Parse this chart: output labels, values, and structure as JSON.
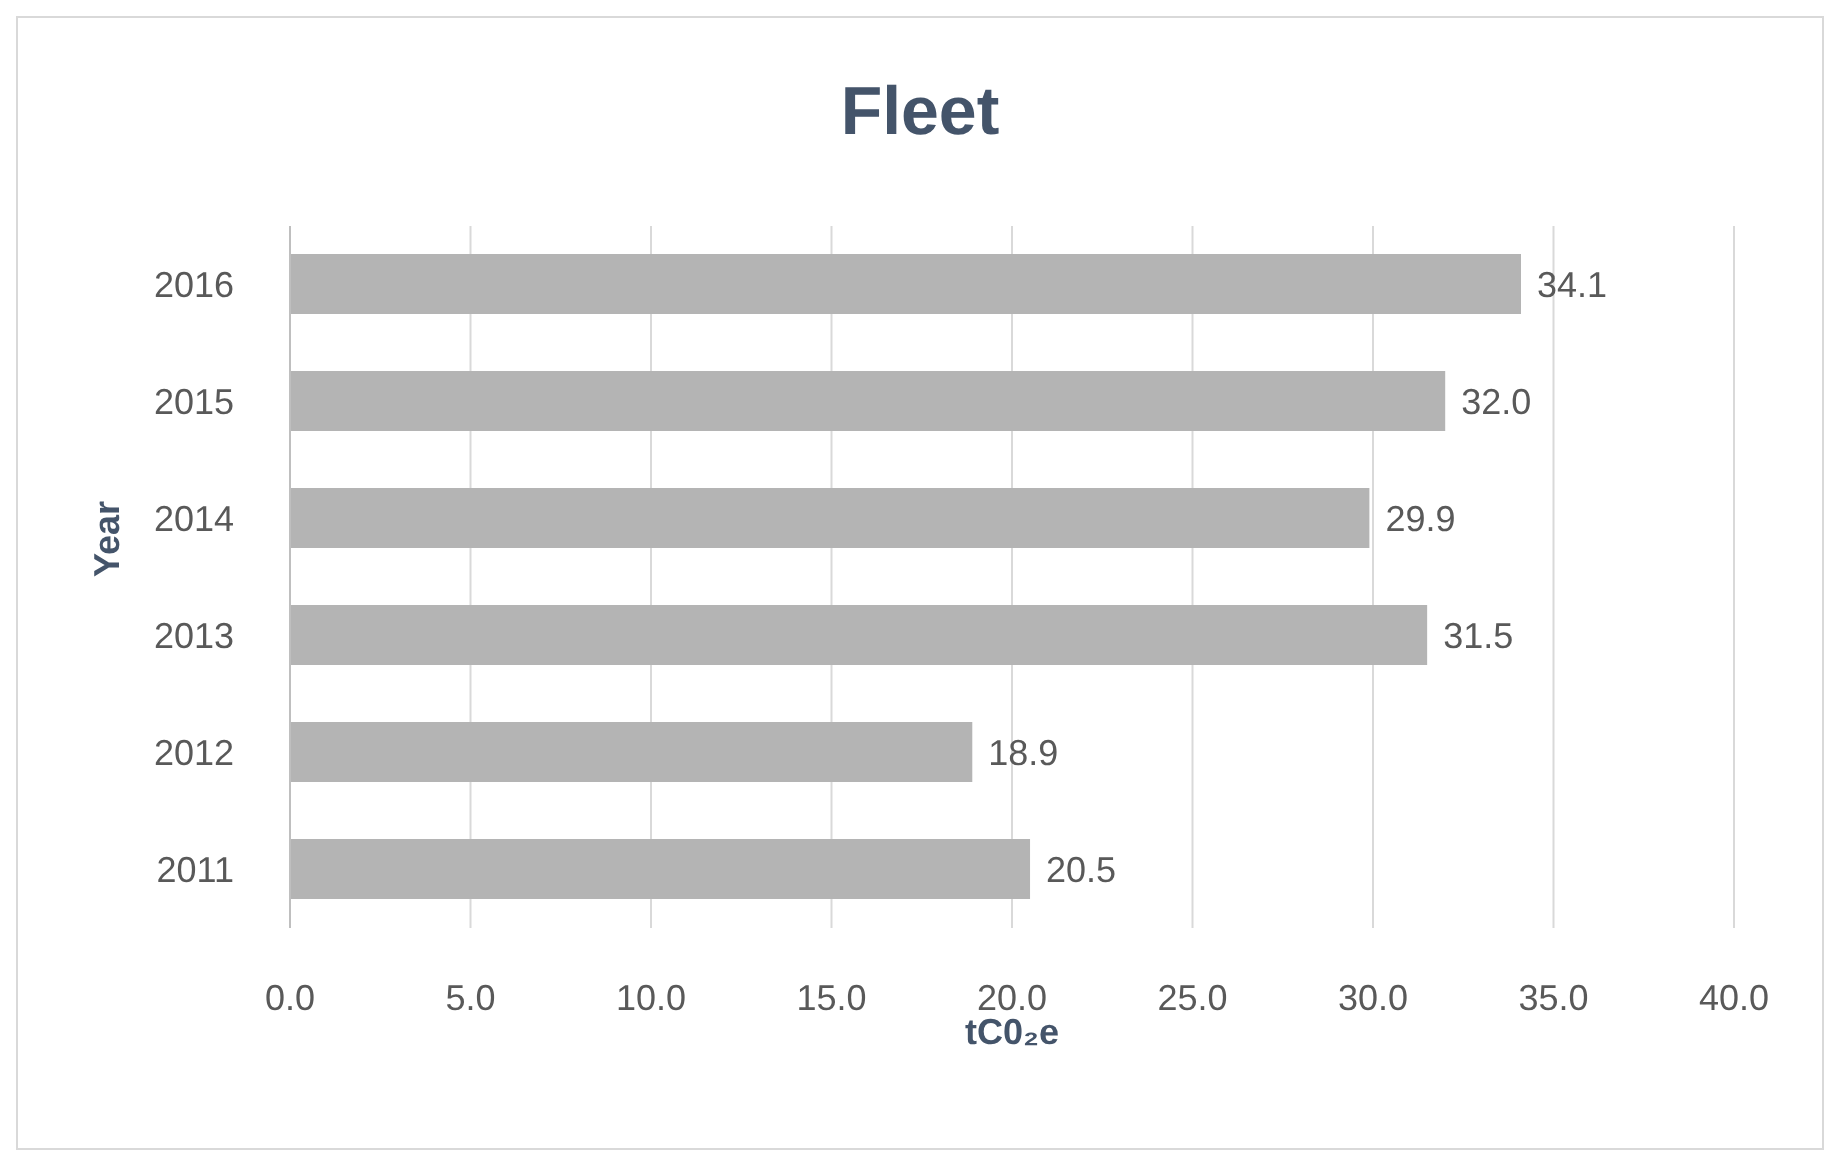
{
  "chart_data": {
    "type": "bar",
    "orientation": "horizontal",
    "title": "Fleet",
    "xlabel": "tC0₂e",
    "ylabel": "Year",
    "categories": [
      "2016",
      "2015",
      "2014",
      "2013",
      "2012",
      "2011"
    ],
    "values": [
      34.1,
      32.0,
      29.9,
      31.5,
      18.9,
      20.5
    ],
    "value_labels": [
      "34.1",
      "32.0",
      "29.9",
      "31.5",
      "18.9",
      "20.5"
    ],
    "color": "#b4b4b4",
    "xlim": [
      0,
      40
    ],
    "xticks": [
      {
        "value": 0,
        "label": "0.0"
      },
      {
        "value": 5,
        "label": "5.0"
      },
      {
        "value": 10,
        "label": "10.0"
      },
      {
        "value": 15,
        "label": "15.0"
      },
      {
        "value": 20,
        "label": "20.0"
      },
      {
        "value": 25,
        "label": "25.0"
      },
      {
        "value": 30,
        "label": "30.0"
      },
      {
        "value": 35,
        "label": "35.0"
      },
      {
        "value": 40,
        "label": "40.0"
      }
    ],
    "grid": "x",
    "legend": false
  }
}
